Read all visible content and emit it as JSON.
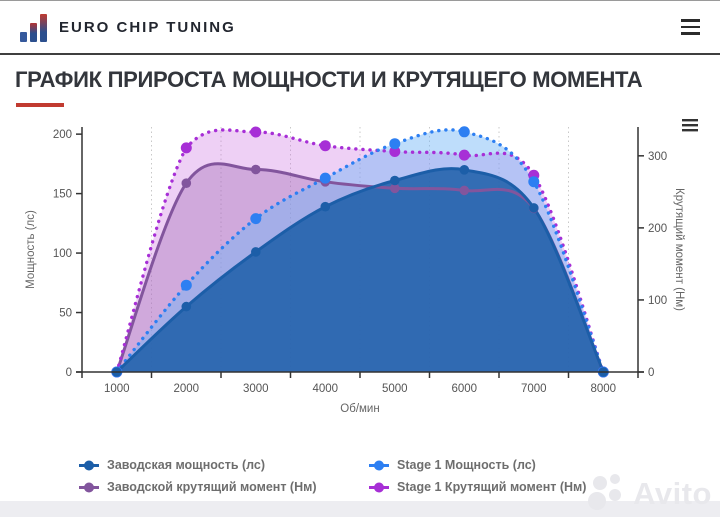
{
  "header": {
    "brand": "EURO CHIP TUNING"
  },
  "page_title": "ГРАФИК ПРИРОСТА МОЩНОСТИ И КРУТЯЩЕГО МОМЕНТА",
  "watermark": "Avito",
  "chart_data": {
    "type": "area",
    "x_axis": {
      "title": "Об/мин",
      "categories": [
        1000,
        2000,
        3000,
        4000,
        5000,
        6000,
        7000,
        8000
      ]
    },
    "power_axis": {
      "side": "left",
      "title": "Мощность (лс)",
      "ticks": [
        0,
        50,
        100,
        150,
        200
      ],
      "max": 206
    },
    "torque_axis": {
      "side": "right",
      "title": "Крутящий момент (Нм)",
      "ticks": [
        0,
        100,
        200,
        300
      ],
      "max": 340
    },
    "grid": "vertical-dotted-between-categories",
    "legend_position": "bottom-two-columns",
    "series": [
      {
        "name": "Заводская мощность (лс)",
        "axis": "power",
        "line": "solid",
        "color": "#1c5ea8",
        "fill": "rgba(28,94,168,0.85)",
        "values": [
          0,
          55,
          101,
          139,
          161,
          170,
          138,
          0
        ]
      },
      {
        "name": "Stage 1 Мощность (лс)",
        "axis": "power",
        "line": "dotted",
        "color": "#2d7ff2",
        "fill": "rgba(110,180,246,0.45)",
        "values": [
          0,
          73,
          129,
          163,
          192,
          202,
          160,
          0
        ]
      },
      {
        "name": "Заводской крутящий момент (Нм)",
        "axis": "torque",
        "line": "solid",
        "color": "#82559d",
        "fill": "rgba(160,106,178,0.38)",
        "values": [
          0,
          262,
          281,
          264,
          255,
          252,
          227,
          0
        ]
      },
      {
        "name": "Stage 1 Крутящий момент (Нм)",
        "axis": "torque",
        "line": "dotted",
        "color": "#a72fd6",
        "fill": "rgba(203,113,226,0.33)",
        "values": [
          0,
          311,
          333,
          314,
          306,
          301,
          273,
          0
        ]
      }
    ],
    "style": {
      "axis_color": "#333333",
      "grid_color": "#c8c8c8",
      "tick_label_color": "#555555",
      "axis_title_color": "#666666"
    }
  }
}
